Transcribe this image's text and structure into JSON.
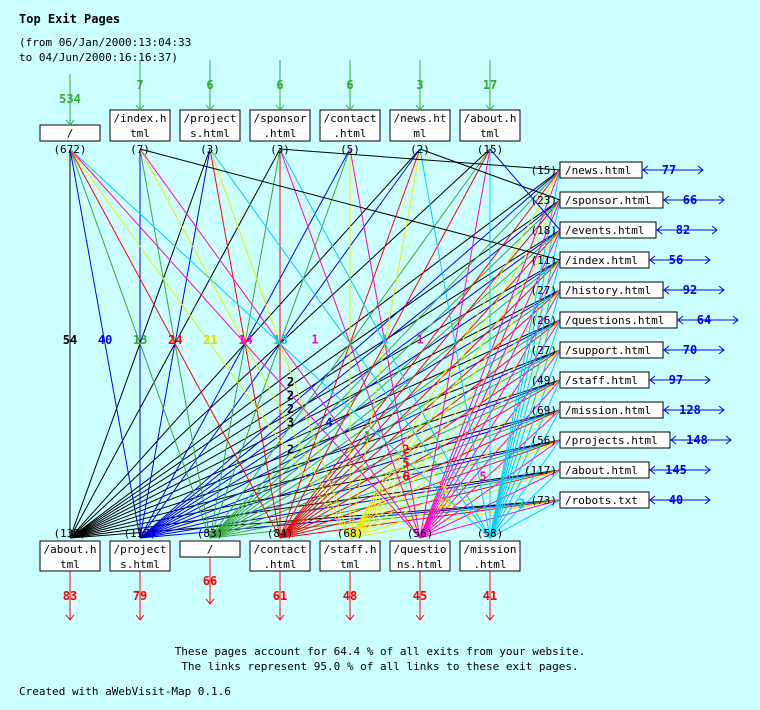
{
  "title": "Top Exit Pages",
  "range_line1": "(from 06/Jan/2000:13:04:33",
  "range_line2": "to 04/Jun/2000:16:16:37)",
  "colors": {
    "entry": "#33aa33",
    "exit": "#ff0000",
    "side": "#0000ee",
    "box": "#ffffff",
    "bg": "#ccffff"
  },
  "top_nodes": [
    {
      "label": [
        "/"
      ],
      "count": "(672)",
      "entries": "534"
    },
    {
      "label": [
        "/index.h",
        "tml"
      ],
      "count": "(7)",
      "entries": "7"
    },
    {
      "label": [
        "/project",
        "s.html"
      ],
      "count": "(3)",
      "entries": "6"
    },
    {
      "label": [
        "/sponsor",
        ".html"
      ],
      "count": "(3)",
      "entries": "6"
    },
    {
      "label": [
        "/contact",
        ".html"
      ],
      "count": "(5)",
      "entries": "6"
    },
    {
      "label": [
        "/news.ht",
        "ml"
      ],
      "count": "(2)",
      "entries": "3"
    },
    {
      "label": [
        "/about.h",
        "tml"
      ],
      "count": "(15)",
      "entries": "17"
    }
  ],
  "right_nodes": [
    {
      "label": "/news.html",
      "count": "(15)",
      "value": "77"
    },
    {
      "label": "/sponsor.html",
      "count": "(23)",
      "value": "66"
    },
    {
      "label": "/events.html",
      "count": "(18)",
      "value": "82"
    },
    {
      "label": "/index.html",
      "count": "(11)",
      "value": "56"
    },
    {
      "label": "/history.html",
      "count": "(27)",
      "value": "92"
    },
    {
      "label": "/questions.html",
      "count": "(26)",
      "value": "64"
    },
    {
      "label": "/support.html",
      "count": "(27)",
      "value": "70"
    },
    {
      "label": "/staff.html",
      "count": "(49)",
      "value": "97"
    },
    {
      "label": "/mission.html",
      "count": "(69)",
      "value": "128"
    },
    {
      "label": "/projects.html",
      "count": "(56)",
      "value": "148"
    },
    {
      "label": "/about.html",
      "count": "(117)",
      "value": "145"
    },
    {
      "label": "/robots.txt",
      "count": "(73)",
      "value": "40"
    }
  ],
  "bottom_nodes": [
    {
      "label": [
        "/about.h",
        "tml"
      ],
      "count": "(139)",
      "exits": "83",
      "color": "#000000"
    },
    {
      "label": [
        "/project",
        "s.html"
      ],
      "count": "(117)",
      "exits": "79",
      "color": "#0000ee"
    },
    {
      "label": [
        "/"
      ],
      "count": "(83)",
      "exits": "66",
      "color": "#33aa33"
    },
    {
      "label": [
        "/contact",
        ".html"
      ],
      "count": "(84)",
      "exits": "61",
      "color": "#ff0000"
    },
    {
      "label": [
        "/staff.h",
        "tml"
      ],
      "count": "(68)",
      "exits": "48",
      "color": "#eeee00"
    },
    {
      "label": [
        "/questio",
        "ns.html"
      ],
      "count": "(56)",
      "exits": "45",
      "color": "#ff00cc"
    },
    {
      "label": [
        "/mission",
        ".html"
      ],
      "count": "(58)",
      "exits": "41",
      "color": "#00ccff"
    }
  ],
  "edge_labels": [
    {
      "from": "t0",
      "to": "b0",
      "count": "54"
    },
    {
      "from": "t0",
      "to": "b1",
      "count": "40"
    },
    {
      "from": "t0",
      "to": "b2",
      "count": "13"
    },
    {
      "from": "t0",
      "to": "b3",
      "count": "24"
    },
    {
      "from": "t0",
      "to": "b4",
      "count": "21"
    },
    {
      "from": "t0",
      "to": "b5",
      "count": "14"
    },
    {
      "from": "t0",
      "to": "b6",
      "count": "13"
    },
    {
      "from": "t2",
      "to": "b5",
      "count": "1"
    },
    {
      "from": "t3",
      "to": "b6",
      "count": "1"
    },
    {
      "from": "t5",
      "to": "b5",
      "count": "1"
    },
    {
      "from": "r1",
      "to": "b0",
      "count": "2"
    },
    {
      "from": "r2",
      "to": "b0",
      "count": "2"
    },
    {
      "from": "r3",
      "to": "b0",
      "count": "2"
    },
    {
      "from": "r4",
      "to": "b0",
      "count": "3"
    },
    {
      "from": "r6",
      "to": "b0",
      "count": "2"
    },
    {
      "from": "r4",
      "to": "b1",
      "count": "4"
    },
    {
      "from": "r5",
      "to": "b2",
      "count": "1"
    },
    {
      "from": "r6",
      "to": "b3",
      "count": "2"
    },
    {
      "from": "r7",
      "to": "b3",
      "count": "5"
    },
    {
      "from": "r8",
      "to": "b3",
      "count": "6"
    },
    {
      "from": "r9",
      "to": "b4",
      "count": "3"
    },
    {
      "from": "r10",
      "to": "b4",
      "count": "35"
    },
    {
      "from": "r8",
      "to": "b5",
      "count": "5"
    },
    {
      "from": "r10",
      "to": "b6",
      "count": "2"
    }
  ],
  "footer_line1": "These pages account for 64.4 % of all exits from your website.",
  "footer_line2": "The links represent 95.0 % of all links to these exit pages.",
  "created": "Created with aWebVisit-Map 0.1.6"
}
